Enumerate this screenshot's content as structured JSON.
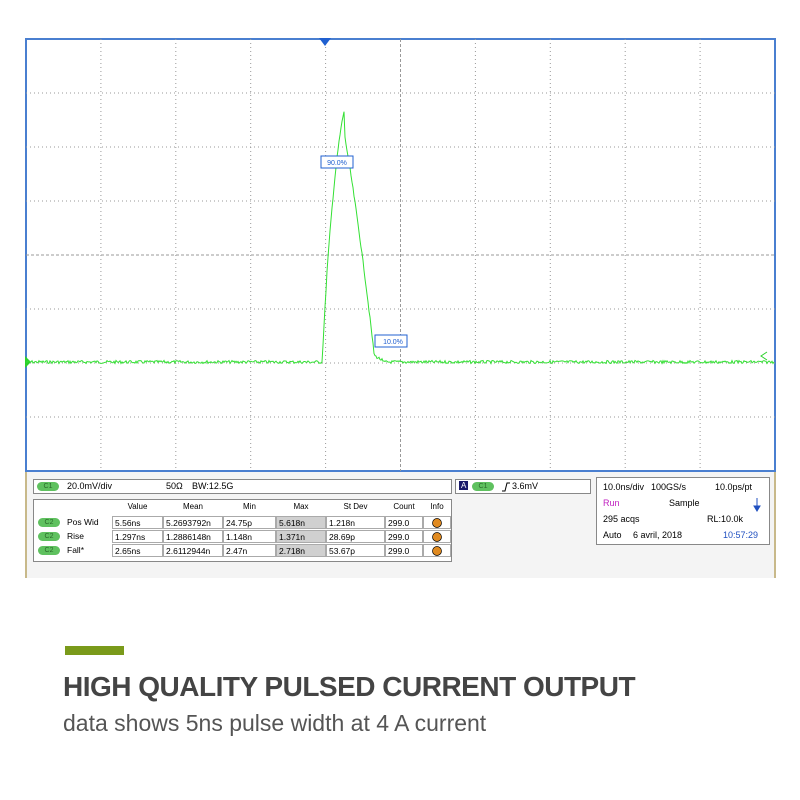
{
  "markers": {
    "upper": "90.0%",
    "lower": "10.0%"
  },
  "channel": {
    "badge": "C1",
    "scale": "20.0mV/div",
    "impedance": "50Ω",
    "bandwidth": "BW:12.5G"
  },
  "trigger": {
    "mode": "A",
    "badge": "C1",
    "level": "3.6mV"
  },
  "timebase": {
    "scale": "10.0ns/div",
    "rate": "100GS/s",
    "resolution": "10.0ps/pt",
    "state": "Run",
    "acq_mode": "Sample",
    "acqs": "295 acqs",
    "record": "RL:10.0k",
    "trigger_mode": "Auto",
    "date": "6 avril, 2018",
    "time": "10:57:29"
  },
  "measurements": {
    "headers": [
      "Value",
      "Mean",
      "Min",
      "Max",
      "St Dev",
      "Count",
      "Info"
    ],
    "rows": [
      {
        "badge": "C2",
        "name": "Pos Wid",
        "cells": [
          "5.56ns",
          "5.2693792n",
          "24.75p",
          "5.618n",
          "1.218n",
          "299.0"
        ]
      },
      {
        "badge": "C2",
        "name": "Rise",
        "cells": [
          "1.297ns",
          "1.2886148n",
          "1.148n",
          "1.371n",
          "28.69p",
          "299.0"
        ]
      },
      {
        "badge": "C2",
        "name": "Fall*",
        "cells": [
          "2.65ns",
          "2.6112944n",
          "2.47n",
          "2.718n",
          "53.67p",
          "299.0"
        ]
      }
    ]
  },
  "caption": {
    "title": "HIGH QUALITY PULSED CURRENT OUTPUT",
    "subtitle": "data shows 5ns pulse width at 4 A current"
  }
}
